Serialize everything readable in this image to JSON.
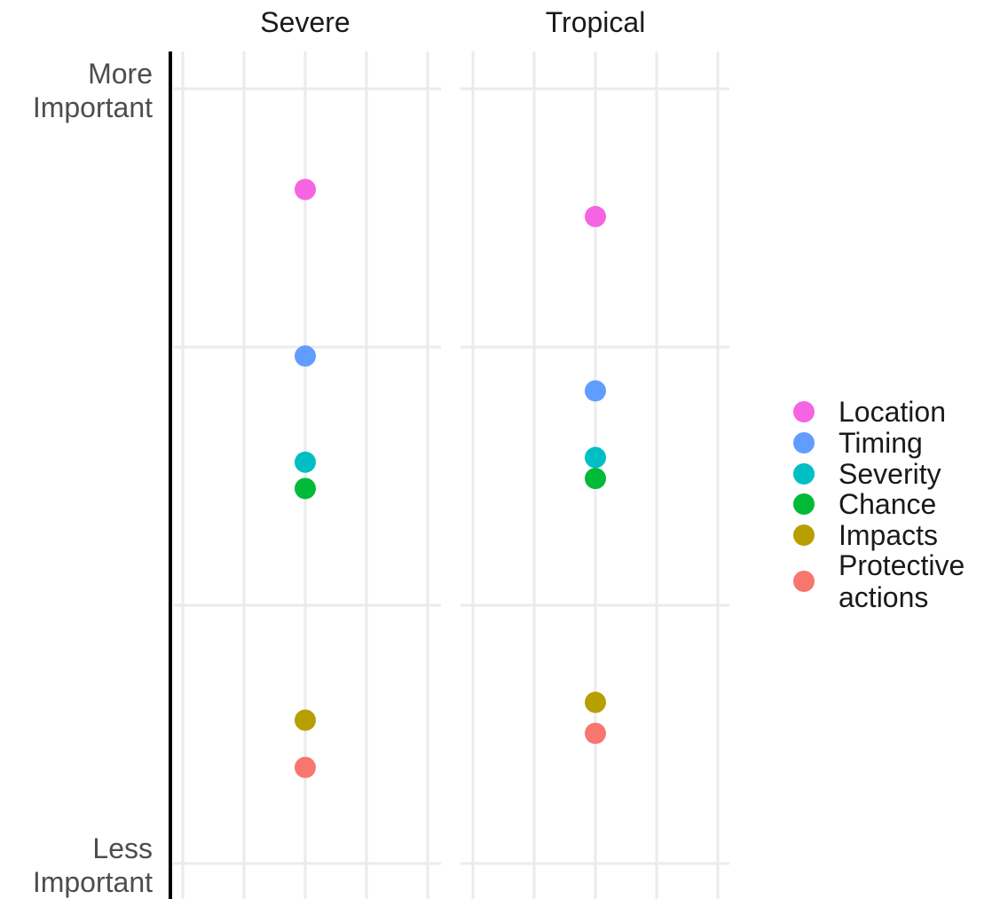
{
  "chart_data": {
    "type": "scatter",
    "facets": [
      "Severe",
      "Tropical"
    ],
    "y_tick_labels": [
      {
        "value": 1,
        "lines": [
          "More",
          "Important"
        ]
      },
      {
        "value": 0,
        "lines": [
          "Less",
          "Important"
        ]
      }
    ],
    "ylim": [
      0,
      1
    ],
    "grid": true,
    "legend_position": "right",
    "series": [
      {
        "name": "Location",
        "color": "#F564E3",
        "values": [
          0.87,
          0.835
        ]
      },
      {
        "name": "Timing",
        "color": "#619CFF",
        "values": [
          0.655,
          0.61
        ]
      },
      {
        "name": "Severity",
        "color": "#00BFC4",
        "values": [
          0.518,
          0.524
        ]
      },
      {
        "name": "Chance",
        "color": "#00BA38",
        "values": [
          0.484,
          0.497
        ]
      },
      {
        "name": "Impacts",
        "color": "#B79F00",
        "values": [
          0.185,
          0.208
        ]
      },
      {
        "name": "Protective\nactions",
        "color": "#F8766D",
        "values": [
          0.124,
          0.168
        ]
      }
    ]
  }
}
